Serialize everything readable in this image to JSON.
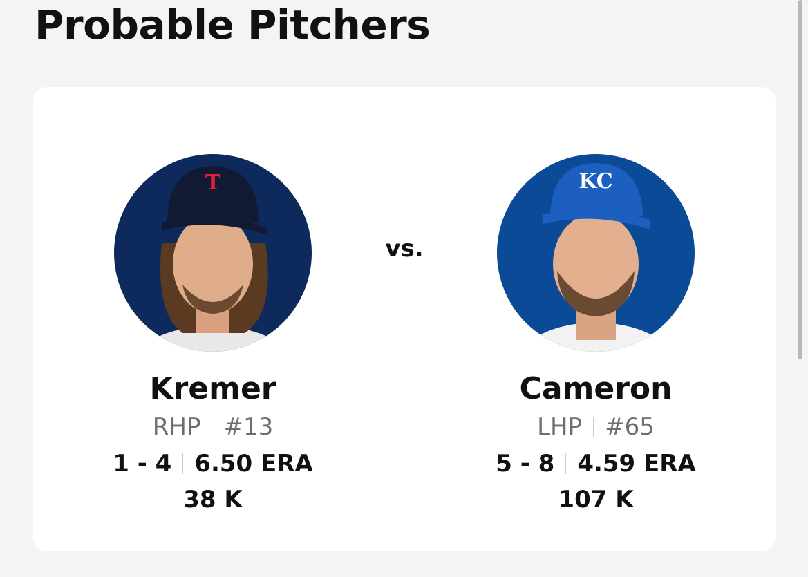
{
  "header": {
    "title": "Probable Pitchers"
  },
  "matchup": {
    "vs": "vs.",
    "pitchers": [
      {
        "name": "Kremer",
        "hand": "RHP",
        "number": "#13",
        "record": "1 - 4",
        "era": "6.50 ERA",
        "strikeouts": "38 K"
      },
      {
        "name": "Cameron",
        "hand": "LHP",
        "number": "#65",
        "record": "5 - 8",
        "era": "4.59 ERA",
        "strikeouts": "107 K"
      }
    ]
  }
}
